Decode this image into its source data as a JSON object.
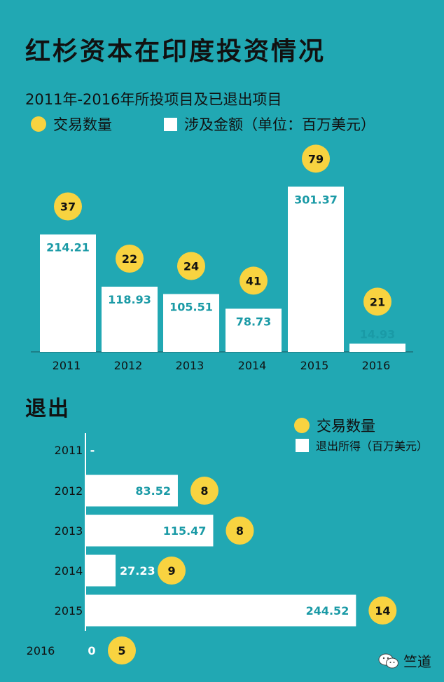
{
  "title": "红杉资本在印度投资情况",
  "subtitle": "2011年-2016年所投项目及已退出项目",
  "legend_top": {
    "deals": "交易数量",
    "amount": "涉及金额（单位：百万美元）"
  },
  "exit_section_title": "退出",
  "legend_exit": {
    "deals": "交易数量",
    "proceeds": "退出所得（百万美元）"
  },
  "watermark": "竺道",
  "colors": {
    "background": "#21a8b3",
    "bar": "#ffffff",
    "bubble": "#f8d340",
    "value_text": "#1a9aa6"
  },
  "chart_data": [
    {
      "type": "bar",
      "title": "2011年-2016年所投项目及已退出项目",
      "categories": [
        "2011",
        "2012",
        "2013",
        "2014",
        "2015",
        "2016"
      ],
      "series": [
        {
          "name": "涉及金额（单位：百万美元）",
          "values": [
            214.21,
            118.93,
            105.51,
            78.73,
            301.37,
            14.93
          ],
          "labels": [
            "214.21",
            "118.93",
            "105.51",
            "78.73",
            "301.37",
            "14.93"
          ]
        },
        {
          "name": "交易数量",
          "values": [
            37,
            22,
            24,
            41,
            79,
            21
          ]
        }
      ]
    },
    {
      "type": "bar",
      "orientation": "horizontal",
      "title": "退出",
      "categories": [
        "2011",
        "2012",
        "2013",
        "2014",
        "2015",
        "2016"
      ],
      "series": [
        {
          "name": "退出所得（百万美元）",
          "values": [
            null,
            83.52,
            115.47,
            27.23,
            244.52,
            0
          ],
          "labels": [
            "-",
            "83.52",
            "115.47",
            "27.23",
            "244.52",
            "0"
          ]
        },
        {
          "name": "交易数量",
          "values": [
            null,
            8,
            8,
            9,
            14,
            5
          ]
        }
      ]
    }
  ]
}
